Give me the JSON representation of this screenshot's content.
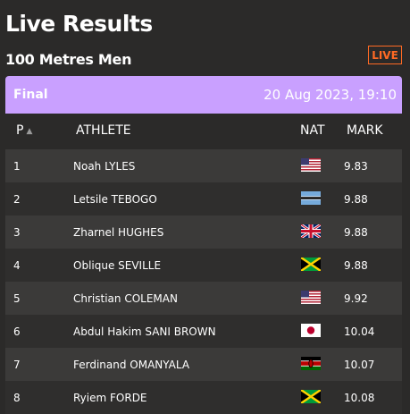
{
  "title": "Live Results",
  "subtitle": "100 Metres Men",
  "live_badge": "LIVE",
  "round": {
    "label": "Final",
    "datetime": "20 Aug 2023, 19:10"
  },
  "columns": {
    "position": "P",
    "athlete": "ATHLETE",
    "nationality": "NAT",
    "mark": "MARK"
  },
  "results": [
    {
      "position": "1",
      "athlete": "Noah LYLES",
      "flag": "usa-flag",
      "mark": "9.83"
    },
    {
      "position": "2",
      "athlete": "Letsile TEBOGO",
      "flag": "botswana-flag",
      "mark": "9.88"
    },
    {
      "position": "3",
      "athlete": "Zharnel HUGHES",
      "flag": "uk-flag",
      "mark": "9.88"
    },
    {
      "position": "4",
      "athlete": "Oblique SEVILLE",
      "flag": "jamaica-flag",
      "mark": "9.88"
    },
    {
      "position": "5",
      "athlete": "Christian COLEMAN",
      "flag": "usa-flag",
      "mark": "9.92"
    },
    {
      "position": "6",
      "athlete": "Abdul Hakim SANI BROWN",
      "flag": "japan-flag",
      "mark": "10.04"
    },
    {
      "position": "7",
      "athlete": "Ferdinand OMANYALA",
      "flag": "kenya-flag",
      "mark": "10.07"
    },
    {
      "position": "8",
      "athlete": "Ryiem FORDE",
      "flag": "jamaica-flag",
      "mark": "10.08"
    }
  ],
  "colors": {
    "background": "#2b2a29",
    "accent": "#c9a0ff",
    "live": "#ff6a24"
  }
}
